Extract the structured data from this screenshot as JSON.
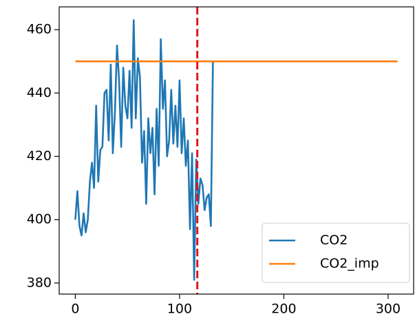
{
  "chart_data": {
    "type": "line",
    "xlim": [
      -15.45,
      324.45
    ],
    "xticks": [
      0,
      100,
      200,
      300
    ],
    "ylim": [
      376.5,
      467.2
    ],
    "yticks": [
      380,
      400,
      420,
      440,
      460
    ],
    "grid": false,
    "legend": "lower right",
    "series": [
      {
        "name": "CO2",
        "color": "#1f77b4",
        "x": [
          0,
          2,
          4,
          6,
          8,
          10,
          12,
          14,
          16,
          18,
          20,
          22,
          24,
          26,
          28,
          30,
          32,
          34,
          36,
          38,
          40,
          42,
          44,
          46,
          48,
          50,
          52,
          54,
          56,
          58,
          60,
          62,
          64,
          66,
          68,
          70,
          72,
          74,
          76,
          78,
          80,
          82,
          84,
          86,
          88,
          90,
          92,
          94,
          96,
          98,
          100,
          102,
          104,
          106,
          108,
          110,
          112,
          114,
          116,
          118,
          120,
          122,
          124,
          126,
          128,
          130,
          132
        ],
        "values": [
          400,
          409,
          398,
          395,
          402,
          396,
          400,
          412,
          418,
          410,
          436,
          412,
          422,
          423,
          440,
          441,
          425,
          449,
          421,
          434,
          455,
          444,
          423,
          448,
          436,
          432,
          447,
          429,
          463,
          432,
          451,
          445,
          418,
          428,
          405,
          432,
          421,
          429,
          408,
          435,
          417,
          457,
          435,
          444,
          420,
          425,
          441,
          424,
          436,
          423,
          444,
          421,
          432,
          417,
          425,
          397,
          421,
          381,
          419,
          405,
          413,
          411,
          403,
          407,
          408,
          398,
          450
        ]
      },
      {
        "name": "CO2_imp",
        "color": "#ff7f0e",
        "x": [
          0,
          309
        ],
        "values": [
          450,
          450
        ]
      }
    ],
    "vlines": [
      {
        "x": 117,
        "color": "#e0141a",
        "style": "dashed"
      }
    ]
  }
}
